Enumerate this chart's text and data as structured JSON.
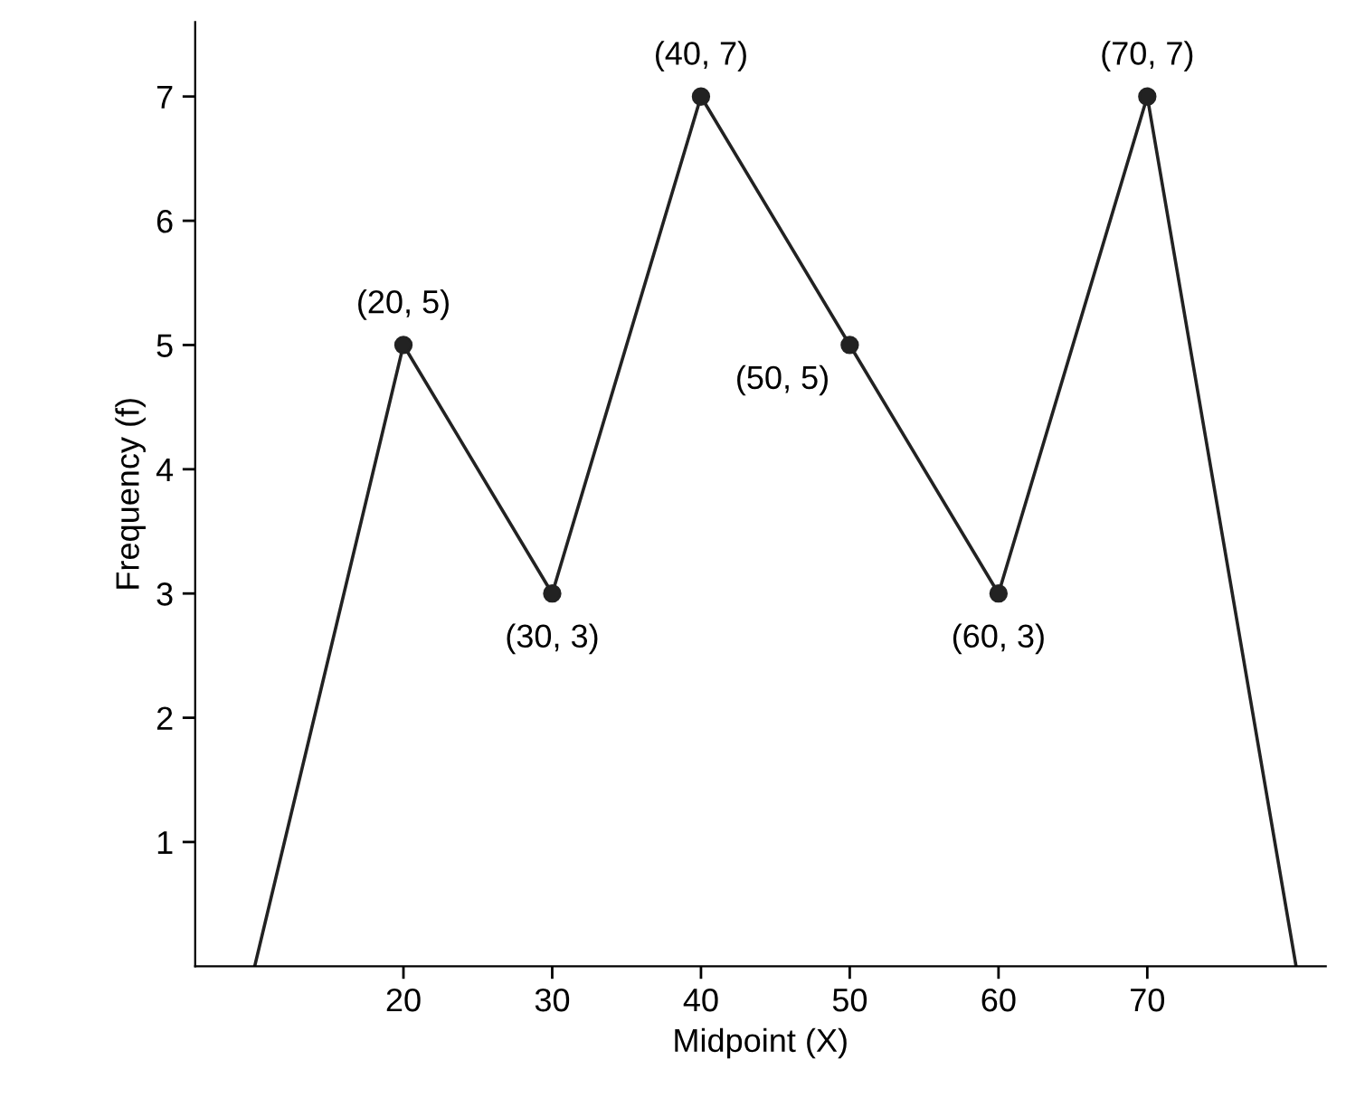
{
  "chart_data": {
    "type": "line",
    "xlabel": "Midpoint (X)",
    "ylabel": "Frequency (f)",
    "xlim": [
      6,
      82
    ],
    "ylim": [
      0,
      7.6
    ],
    "xticks": [
      20,
      30,
      40,
      50,
      60,
      70
    ],
    "yticks": [
      1,
      2,
      3,
      4,
      5,
      6,
      7
    ],
    "grid": false,
    "legend": false,
    "series": [
      {
        "color": "#222222",
        "marker": "none",
        "x": [
          10,
          20,
          30,
          40,
          50,
          60,
          70,
          80
        ],
        "values": [
          0,
          5,
          3,
          7,
          5,
          3,
          7,
          0
        ]
      },
      {
        "type": "scatter",
        "color": "#222222",
        "marker": "circle",
        "x": [
          20,
          30,
          40,
          50,
          60,
          70
        ],
        "values": [
          5,
          3,
          7,
          5,
          3,
          7
        ]
      }
    ],
    "annotations": [
      {
        "text": "(20, 5)",
        "x": 20,
        "y": 5
      },
      {
        "text": "(30, 3)",
        "x": 30,
        "y": 3
      },
      {
        "text": "(40, 7)",
        "x": 40,
        "y": 7
      },
      {
        "text": "(50, 5)",
        "x": 50,
        "y": 5
      },
      {
        "text": "(60, 3)",
        "x": 60,
        "y": 3
      },
      {
        "text": "(70, 7)",
        "x": 70,
        "y": 7
      }
    ]
  }
}
